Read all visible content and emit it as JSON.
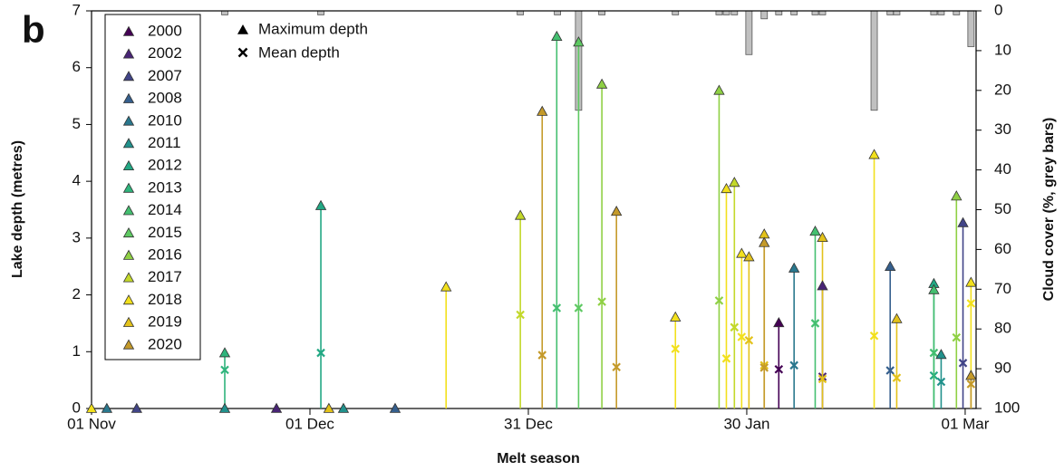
{
  "chart_data": {
    "type": "lollipop",
    "panel_label": "b",
    "x_label": "Melt season",
    "y_label": "Lake depth (metres)",
    "y2_label": "Cloud cover (%, grey bars)",
    "marker_legend": {
      "max": "Maximum depth",
      "mean": "Mean depth"
    },
    "xlim": [
      0,
      121.5
    ],
    "xticks": [
      {
        "value": 0,
        "label": "01 Nov"
      },
      {
        "value": 30,
        "label": "01 Dec"
      },
      {
        "value": 60,
        "label": "31 Dec"
      },
      {
        "value": 90,
        "label": "30 Jan"
      },
      {
        "value": 120,
        "label": "01 Mar"
      }
    ],
    "ylim": [
      0,
      7
    ],
    "yticks": [
      0,
      1,
      2,
      3,
      4,
      5,
      6,
      7
    ],
    "y2lim": [
      100,
      0
    ],
    "y2ticks": [
      0,
      10,
      20,
      30,
      40,
      50,
      60,
      70,
      80,
      90,
      100
    ],
    "series": [
      {
        "name": "2000",
        "color": "#440154",
        "x": [
          94.4
        ],
        "max": [
          1.51
        ],
        "mean": [
          0.69
        ]
      },
      {
        "name": "2002",
        "color": "#482475",
        "x": [
          25.4,
          100.4
        ],
        "max": [
          0,
          2.16
        ],
        "mean": [
          null,
          0.56
        ]
      },
      {
        "name": "2007",
        "color": "#414487",
        "x": [
          6.2,
          119.7
        ],
        "max": [
          0,
          3.27
        ],
        "mean": [
          null,
          0.8
        ]
      },
      {
        "name": "2008",
        "color": "#355f8d",
        "x": [
          41.7,
          109.7
        ],
        "max": [
          0,
          2.5
        ],
        "mean": [
          null,
          0.67
        ]
      },
      {
        "name": "2010",
        "color": "#2a788e",
        "x": [
          2.1,
          96.5
        ],
        "max": [
          0,
          2.47
        ],
        "mean": [
          null,
          0.76
        ]
      },
      {
        "name": "2011",
        "color": "#21918c",
        "x": [
          18.3,
          34.6,
          116.7
        ],
        "max": [
          0,
          0,
          0.95
        ],
        "mean": [
          null,
          null,
          0.47
        ]
      },
      {
        "name": "2012",
        "color": "#22a884",
        "x": [
          31.5,
          115.7
        ],
        "max": [
          3.57,
          2.2
        ],
        "mean": [
          0.98,
          0.58
        ]
      },
      {
        "name": "2013",
        "color": "#2fb47c",
        "x": [
          18.3
        ],
        "max": [
          0.98
        ],
        "mean": [
          0.68
        ]
      },
      {
        "name": "2014",
        "color": "#44bf70",
        "x": [
          63.9,
          99.4,
          115.7
        ],
        "max": [
          6.55,
          3.12,
          2.09
        ],
        "mean": [
          1.77,
          1.5,
          0.98
        ]
      },
      {
        "name": "2015",
        "color": "#5ec962",
        "x": [
          66.9
        ],
        "max": [
          6.45
        ],
        "mean": [
          1.77
        ]
      },
      {
        "name": "2016",
        "color": "#8fd044",
        "x": [
          70.1,
          86.2,
          118.8
        ],
        "max": [
          5.71,
          5.6,
          3.74
        ],
        "mean": [
          1.88,
          1.9,
          1.25
        ]
      },
      {
        "name": "2017",
        "color": "#c3d82a",
        "x": [
          58.9,
          88.3
        ],
        "max": [
          3.4,
          3.98
        ],
        "mean": [
          1.65,
          1.43
        ]
      },
      {
        "name": "2018",
        "color": "#f2e01c",
        "x": [
          0,
          48.7,
          80.2,
          87.2,
          89.3,
          107.5,
          120.8
        ],
        "max": [
          0,
          2.14,
          1.61,
          3.87,
          2.73,
          4.47,
          2.22
        ],
        "mean": [
          null,
          null,
          1.05,
          0.88,
          1.26,
          1.28,
          1.85
        ]
      },
      {
        "name": "2019",
        "color": "#e3c21a",
        "x": [
          32.6,
          90.3,
          92.4,
          100.4,
          110.6
        ],
        "max": [
          0,
          2.67,
          3.07,
          3.01,
          1.58
        ],
        "mean": [
          null,
          1.2,
          0.76,
          0.52,
          0.54
        ]
      },
      {
        "name": "2020",
        "color": "#c49a2a",
        "x": [
          61.9,
          72.1,
          92.4,
          120.8
        ],
        "max": [
          5.23,
          3.47,
          2.92,
          0.58
        ],
        "mean": [
          0.94,
          0.73,
          0.72,
          0.43
        ]
      }
    ],
    "cloud": {
      "axis": "y2",
      "color": "#c0c0c0",
      "x": [
        18.3,
        31.5,
        58.9,
        64.0,
        66.9,
        70.1,
        80.2,
        86.2,
        87.2,
        88.3,
        90.3,
        92.4,
        94.4,
        96.5,
        99.4,
        100.4,
        107.5,
        109.7,
        110.6,
        115.7,
        116.7,
        118.8,
        120.8
      ],
      "values": [
        1,
        1,
        1,
        1,
        25,
        1,
        1,
        1,
        1,
        1,
        11,
        2,
        1,
        1,
        1,
        1,
        25,
        1,
        1,
        1,
        1,
        1,
        9
      ]
    }
  }
}
